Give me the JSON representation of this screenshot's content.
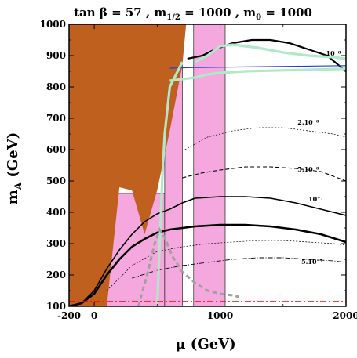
{
  "chart_data": {
    "type": "line",
    "title": "tan β = 57 ,  m_{1/2} = 1000 ,  m_0 = 1000",
    "title_parts": {
      "tan": "tan ",
      "beta": "β",
      "eq1": " = 57 ,  m",
      "sub_half": "1/2",
      "eq2": " = 1000 ,  m",
      "sub_0": "0",
      "eq3": " = 1000"
    },
    "xlabel": "μ (GeV)",
    "ylabel_main": "m",
    "ylabel_sub": "A",
    "ylabel_tail": " (GeV)",
    "xlim": [
      -200,
      2000
    ],
    "ylim": [
      100,
      1000
    ],
    "xticks": [
      -200,
      0,
      1000,
      2000
    ],
    "xtick_labels": [
      "-200",
      "0",
      "1000",
      "2000"
    ],
    "yticks": [
      100,
      200,
      300,
      400,
      500,
      600,
      700,
      800,
      900,
      1000
    ],
    "ytick_labels": [
      "100",
      "200",
      "300",
      "400",
      "500",
      "600",
      "700",
      "800",
      "900",
      "1000"
    ],
    "colors": {
      "excluded_brown": "#c0601f",
      "pink_band": "#f4a8de",
      "green_region": "#55e030",
      "light_green": "#b0e8c8",
      "blue": "#2a3bd6",
      "red": "#ff0000",
      "gray": "#a0a0a0"
    },
    "regions": {
      "brown": {
        "x": [
          -200,
          730,
          700,
          600,
          500,
          400,
          300,
          200,
          100,
          -200
        ],
        "y": [
          1000,
          1000,
          870,
          660,
          470,
          330,
          470,
          480,
          100,
          100
        ]
      },
      "pink_bands": [
        {
          "x": [
            20,
            100,
            100,
            20
          ],
          "y": [
            100,
            100,
            480,
            480
          ]
        },
        {
          "x": [
            100,
            560,
            560,
            100
          ],
          "y": [
            100,
            100,
            460,
            460
          ]
        },
        {
          "x": [
            560,
            700,
            700,
            560
          ],
          "y": [
            100,
            100,
            900,
            900
          ]
        },
        {
          "x": [
            790,
            1040,
            1040,
            790
          ],
          "y": [
            100,
            100,
            1000,
            1000
          ]
        }
      ],
      "green": {
        "x": [
          -150,
          -110,
          -80,
          -50,
          10,
          80,
          110,
          -150
        ],
        "y": [
          100,
          240,
          300,
          240,
          160,
          120,
          100,
          100
        ]
      }
    },
    "series": [
      {
        "style": "thick-black",
        "label": "10⁻⁸",
        "x": [
          740,
          860,
          960,
          1100,
          1250,
          1400,
          1550,
          1700,
          1850,
          2000
        ],
        "y": [
          890,
          900,
          920,
          940,
          950,
          950,
          940,
          920,
          900,
          850
        ]
      },
      {
        "style": "thin-dashed",
        "label": "2.10⁻⁸",
        "x": [
          720,
          900,
          1100,
          1300,
          1500,
          1700,
          1900,
          2000
        ],
        "y": [
          600,
          640,
          660,
          670,
          670,
          660,
          650,
          640
        ]
      },
      {
        "style": "dashed",
        "label": "5.10⁻⁸",
        "x": [
          700,
          850,
          1000,
          1200,
          1400,
          1600,
          1800,
          2000
        ],
        "y": [
          510,
          525,
          535,
          545,
          545,
          540,
          530,
          500
        ]
      },
      {
        "style": "solid",
        "label": "10⁻⁷",
        "x": [
          -200,
          -100,
          0,
          100,
          200,
          300,
          400,
          500,
          600,
          700,
          800,
          1000,
          1200,
          1400,
          1600,
          1800,
          2000
        ],
        "y": [
          100,
          110,
          150,
          220,
          280,
          330,
          370,
          395,
          410,
          430,
          445,
          450,
          450,
          445,
          430,
          410,
          390
        ]
      },
      {
        "style": "thick-solid",
        "label": "",
        "x": [
          -200,
          -100,
          0,
          100,
          200,
          300,
          400,
          500,
          600,
          700,
          800,
          1000,
          1200,
          1400,
          1600,
          1800,
          2000
        ],
        "y": [
          100,
          110,
          140,
          200,
          250,
          290,
          315,
          335,
          345,
          350,
          355,
          360,
          360,
          355,
          345,
          330,
          305
        ]
      },
      {
        "style": "thin-dashed",
        "label": "",
        "x": [
          100,
          300,
          500,
          700,
          900,
          1100,
          1300,
          1500,
          1700,
          1900,
          2000
        ],
        "y": [
          150,
          230,
          275,
          290,
          300,
          305,
          310,
          310,
          305,
          300,
          295
        ]
      },
      {
        "style": "dashdot",
        "label": "5.10⁻⁷",
        "x": [
          300,
          500,
          700,
          900,
          1100,
          1300,
          1500,
          1700,
          1900,
          2000
        ],
        "y": [
          190,
          215,
          230,
          240,
          250,
          255,
          255,
          250,
          245,
          240
        ]
      },
      {
        "style": "blue",
        "label": "",
        "x": [
          600,
          800,
          1000,
          1200,
          1400,
          1600,
          1800,
          2000
        ],
        "y": [
          860,
          862,
          863,
          864,
          865,
          866,
          867,
          868
        ]
      },
      {
        "style": "light-green",
        "label": "",
        "x": [
          600,
          800,
          900,
          1000,
          1200,
          1400,
          1600,
          1800,
          2000
        ],
        "y": [
          820,
          830,
          840,
          845,
          850,
          852,
          854,
          856,
          858
        ]
      },
      {
        "style": "light-green",
        "label": "",
        "x": [
          800,
          900,
          1000,
          1100,
          1300,
          1500,
          1700,
          1900,
          2000
        ],
        "y": [
          880,
          900,
          930,
          935,
          925,
          910,
          900,
          895,
          890
        ]
      },
      {
        "style": "light-green",
        "label": "",
        "x": [
          500,
          520,
          540,
          560,
          600,
          700
        ],
        "y": [
          100,
          300,
          500,
          650,
          800,
          880
        ]
      },
      {
        "style": "gray-dashed",
        "label": "",
        "x": [
          350,
          420,
          480,
          520,
          560,
          620,
          700,
          800,
          900,
          1000,
          1100,
          1150
        ],
        "y": [
          100,
          200,
          300,
          345,
          320,
          260,
          210,
          175,
          150,
          140,
          135,
          130
        ]
      },
      {
        "style": "red-dashdot",
        "label": "",
        "x": [
          -200,
          2000
        ],
        "y": [
          115,
          115
        ]
      }
    ]
  }
}
